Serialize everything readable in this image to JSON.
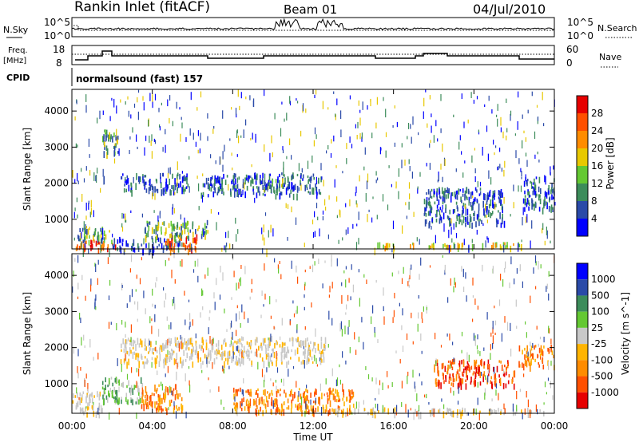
{
  "header": {
    "title": "Rankin Inlet (fitACF)",
    "beam": "Beam 01",
    "date": "04/Jul/2010"
  },
  "panel_labels": {
    "nsky": "N.Sky",
    "nsearch": "N.Search",
    "freq_line1": "Freq.",
    "freq_line2": "[MHz]",
    "nave": "Nave",
    "cpid": "CPID",
    "cpid_value": "normalsound (fast) 157"
  },
  "noise_axis": {
    "left_ticks": [
      "10^5",
      "10^0"
    ],
    "right_ticks": [
      "10^5",
      "10^0"
    ]
  },
  "freq_axis": {
    "left_ticks": [
      "18",
      "8"
    ],
    "right_ticks": [
      "60",
      "0"
    ]
  },
  "colors": {
    "power_scale": [
      "#0000ff",
      "#2a4aa8",
      "#3c8c5a",
      "#64c832",
      "#e8c800",
      "#ff8c00",
      "#ff5000",
      "#e60000"
    ],
    "velocity_scale": [
      "#e60000",
      "#ff5000",
      "#ff8c00",
      "#ffb400",
      "#c8c8c8",
      "#64c832",
      "#3c8c5a",
      "#2a4aa8",
      "#0000ff"
    ]
  },
  "chart_data": [
    {
      "type": "heatmap",
      "quantity": "Power",
      "ylabel": "Slant Range [km]",
      "yticks": [
        "1000",
        "2000",
        "3000",
        "4000"
      ],
      "ylim": [
        180,
        4600
      ],
      "colorbar_label": "Power [dB]",
      "colorbar_ticks": [
        "4",
        "8",
        "12",
        "16",
        "20",
        "24",
        "28"
      ],
      "regions": [
        {
          "t0": 0.0,
          "t1": 2.2,
          "r0": 180,
          "r1": 450,
          "level": "red"
        },
        {
          "t0": 0.2,
          "t1": 2.0,
          "r0": 420,
          "r1": 800,
          "level": "green"
        },
        {
          "t0": 2.0,
          "t1": 5.4,
          "r0": 180,
          "r1": 520,
          "level": "blue"
        },
        {
          "t0": 4.5,
          "t1": 6.2,
          "r0": 180,
          "r1": 600,
          "level": "red"
        },
        {
          "t0": 3.6,
          "t1": 6.8,
          "r0": 520,
          "r1": 1000,
          "level": "green"
        },
        {
          "t0": 2.3,
          "t1": 5.8,
          "r0": 1800,
          "r1": 2300,
          "level": "blue"
        },
        {
          "t0": 6.4,
          "t1": 12.4,
          "r0": 1700,
          "r1": 2300,
          "level": "blue"
        },
        {
          "t0": 9.5,
          "t1": 10.5,
          "r0": 1900,
          "r1": 2150,
          "level": "green"
        },
        {
          "t0": 1.5,
          "t1": 2.3,
          "r0": 2800,
          "r1": 3500,
          "level": "green"
        },
        {
          "t0": 15.0,
          "t1": 22.5,
          "r0": 250,
          "r1": 380,
          "level": "yellow"
        },
        {
          "t0": 17.5,
          "t1": 21.5,
          "r0": 900,
          "r1": 1900,
          "level": "blue"
        },
        {
          "t0": 22.4,
          "t1": 24.0,
          "r0": 1300,
          "r1": 2200,
          "level": "blue"
        }
      ]
    },
    {
      "type": "heatmap",
      "quantity": "Velocity",
      "ylabel": "Slant Range [km]",
      "yticks": [
        "1000",
        "2000",
        "3000",
        "4000"
      ],
      "ylim": [
        180,
        4600
      ],
      "colorbar_label": "Velocity [m s^-1]",
      "colorbar_ticks": [
        "1000",
        "500",
        "100",
        "25",
        "-25",
        "-100",
        "-500",
        "-1000"
      ],
      "xticks": [
        "00:00",
        "04:00",
        "08:00",
        "12:00",
        "16:00",
        "20:00",
        "00:00"
      ],
      "xlabel": "Time UT",
      "regions": [
        {
          "t0": 0.0,
          "t1": 1.5,
          "r0": 200,
          "r1": 800,
          "level": "grey"
        },
        {
          "t0": 1.5,
          "t1": 3.5,
          "r0": 500,
          "r1": 1200,
          "level": "green"
        },
        {
          "t0": 3.4,
          "t1": 5.5,
          "r0": 300,
          "r1": 1000,
          "level": "orange"
        },
        {
          "t0": 2.4,
          "t1": 12.6,
          "r0": 1600,
          "r1": 2300,
          "level": "grey"
        },
        {
          "t0": 8.0,
          "t1": 14.0,
          "r0": 250,
          "r1": 900,
          "level": "orange"
        },
        {
          "t0": 13.0,
          "t1": 23.5,
          "r0": 200,
          "r1": 350,
          "level": "grey"
        },
        {
          "t0": 18.0,
          "t1": 22.0,
          "r0": 1000,
          "r1": 1700,
          "level": "red"
        },
        {
          "t0": 22.2,
          "t1": 24.0,
          "r0": 1500,
          "r1": 2100,
          "level": "orange"
        }
      ]
    }
  ]
}
